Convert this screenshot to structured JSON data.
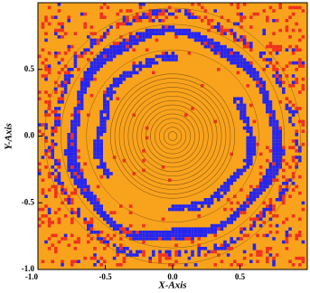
{
  "chart_data": {
    "type": "heatmap",
    "x_label": "X-Axis",
    "y_label": "Y-Axis",
    "xlim": [
      -1.0,
      1.0
    ],
    "ylim": [
      -1.0,
      1.0
    ],
    "xticks": [
      {
        "value": -1.0,
        "label": "-1.0"
      },
      -0.5,
      {
        "value": 0,
        "label": "0.0"
      },
      0.5
    ],
    "yticks": [
      {
        "value": -1.0,
        "label": "-1.0"
      },
      -0.5,
      {
        "value": 0,
        "label": "0.0"
      },
      0.5
    ],
    "background_color": "#f9a31c"
  }
}
